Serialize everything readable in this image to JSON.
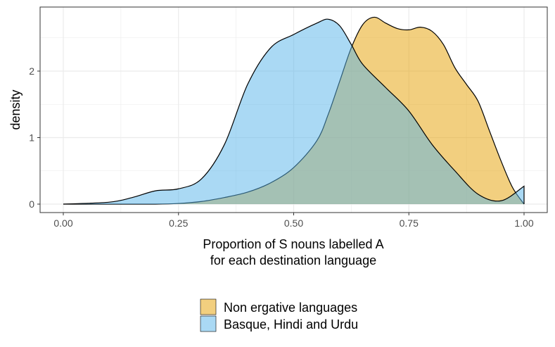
{
  "chart_data": {
    "type": "area",
    "subtype": "density",
    "xlabel_lines": [
      "Proportion of S nouns labelled A",
      "for each destination language"
    ],
    "ylabel": "density",
    "xlim": [
      0,
      1
    ],
    "ylim": [
      0,
      2.8
    ],
    "x_ticks": [
      0,
      0.25,
      0.5,
      0.75,
      1
    ],
    "x_tick_labels": [
      "0.00",
      "0.25",
      "0.50",
      "0.75",
      "1.00"
    ],
    "y_ticks": [
      0,
      1,
      2
    ],
    "y_tick_labels": [
      "0",
      "1",
      "2"
    ],
    "grid": true,
    "legend_position": "bottom",
    "series": [
      {
        "name": "Non ergative languages",
        "color": "#E69F00",
        "x": [
          0,
          0.1,
          0.2,
          0.25,
          0.3,
          0.35,
          0.4,
          0.45,
          0.5,
          0.55,
          0.575,
          0.6,
          0.625,
          0.65,
          0.675,
          0.7,
          0.725,
          0.75,
          0.775,
          0.8,
          0.825,
          0.85,
          0.875,
          0.9,
          0.925,
          0.95,
          0.975,
          1.0
        ],
        "y": [
          0,
          0,
          0,
          0.01,
          0.04,
          0.1,
          0.18,
          0.32,
          0.55,
          0.95,
          1.35,
          1.85,
          2.35,
          2.7,
          2.81,
          2.72,
          2.64,
          2.62,
          2.66,
          2.6,
          2.4,
          2.05,
          1.8,
          1.55,
          1.1,
          0.65,
          0.25,
          0.0
        ]
      },
      {
        "name": "Basque, Hindi and Urdu",
        "color": "#56B4E9",
        "x": [
          0,
          0.1,
          0.15,
          0.2,
          0.25,
          0.3,
          0.35,
          0.4,
          0.45,
          0.5,
          0.55,
          0.575,
          0.6,
          0.625,
          0.65,
          0.7,
          0.75,
          0.8,
          0.85,
          0.9,
          0.95,
          1.0
        ],
        "y": [
          0,
          0.03,
          0.1,
          0.2,
          0.23,
          0.38,
          0.9,
          1.8,
          2.35,
          2.55,
          2.72,
          2.78,
          2.68,
          2.4,
          2.1,
          1.75,
          1.4,
          0.9,
          0.5,
          0.15,
          0.05,
          0.27
        ]
      }
    ]
  }
}
